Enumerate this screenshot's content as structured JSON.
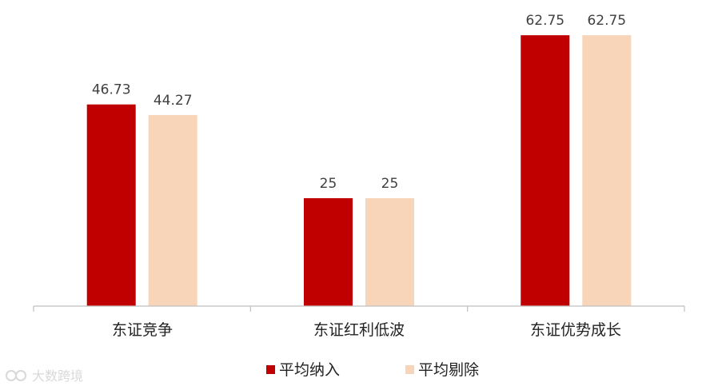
{
  "chart_data": {
    "type": "bar",
    "categories": [
      "东证竞争",
      "东证红利低波",
      "东证优势成长"
    ],
    "series": [
      {
        "name": "平均纳入",
        "values": [
          46.73,
          25,
          62.75
        ],
        "color": "#c00000"
      },
      {
        "name": "平均剔除",
        "values": [
          44.27,
          25,
          62.75
        ],
        "color": "#f8d5b8"
      }
    ],
    "value_labels": [
      [
        "46.73",
        "25",
        "62.75"
      ],
      [
        "44.27",
        "25",
        "62.75"
      ]
    ],
    "ylim": [
      0,
      70
    ],
    "grid": false,
    "legend_position": "bottom"
  },
  "watermark": "大数跨境"
}
